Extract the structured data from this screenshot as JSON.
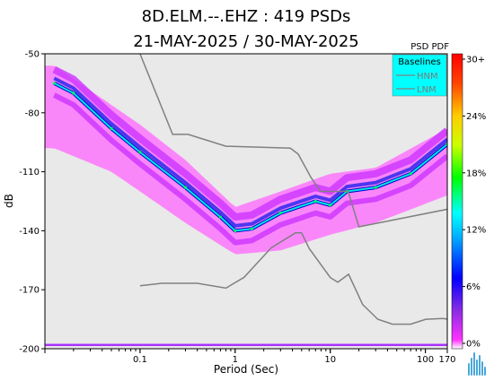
{
  "title": {
    "line1": "8D.ELM.--.EHZ : 419 PSDs",
    "line2": "21-MAY-2025 / 30-MAY-2025"
  },
  "colors": {
    "plot_background": "#e9e9e9",
    "baseline_line": "#808080",
    "legend_background": "#00ffff",
    "mode_line": "#00e5e5"
  },
  "chart_data": {
    "type": "heatmap",
    "title": "8D.ELM.--.EHZ : 419 PSDs",
    "subtitle": "21-MAY-2025 / 30-MAY-2025",
    "xlabel": "Period (Sec)",
    "ylabel": "dB",
    "x_scale": "log",
    "xlim": [
      0.01,
      170
    ],
    "ylim": [
      -200,
      -50
    ],
    "x_ticks": [
      "0.1",
      "1",
      "10",
      "100",
      "170"
    ],
    "y_ticks": [
      "-50",
      "-80",
      "-110",
      "-140",
      "-170",
      "-200"
    ],
    "grid": false,
    "colorbar": {
      "title": "PSD PDF",
      "labels": [
        "30+",
        "24%",
        "18%",
        "12%",
        "6%",
        "0%"
      ],
      "range_percent": [
        0,
        30
      ]
    },
    "legend": {
      "title": "Baselines",
      "entries": [
        "HNM",
        "LNM"
      ],
      "position": "top-right"
    },
    "psd_mode": [
      {
        "period": 0.0125,
        "db": -65
      },
      {
        "period": 0.02,
        "db": -70
      },
      {
        "period": 0.05,
        "db": -88
      },
      {
        "period": 0.1,
        "db": -100
      },
      {
        "period": 0.3,
        "db": -118
      },
      {
        "period": 0.7,
        "db": -133
      },
      {
        "period": 1.0,
        "db": -140
      },
      {
        "period": 1.5,
        "db": -139
      },
      {
        "period": 3.0,
        "db": -131
      },
      {
        "period": 7.0,
        "db": -125
      },
      {
        "period": 10.0,
        "db": -127
      },
      {
        "period": 15.0,
        "db": -120
      },
      {
        "period": 30.0,
        "db": -118
      },
      {
        "period": 70.0,
        "db": -111
      },
      {
        "period": 170.0,
        "db": -96
      }
    ],
    "psd_spread": [
      {
        "period": 0.0125,
        "low": -98,
        "high": -56
      },
      {
        "period": 0.05,
        "low": -110,
        "high": -76
      },
      {
        "period": 0.1,
        "low": -120,
        "high": -86
      },
      {
        "period": 0.3,
        "low": -136,
        "high": -104
      },
      {
        "period": 1.0,
        "low": -152,
        "high": -128
      },
      {
        "period": 3.0,
        "low": -150,
        "high": -120
      },
      {
        "period": 10.0,
        "low": -142,
        "high": -111
      },
      {
        "period": 30.0,
        "low": -136,
        "high": -108
      },
      {
        "period": 170.0,
        "low": -122,
        "high": -88
      }
    ],
    "series": [
      {
        "name": "HNM",
        "points": [
          {
            "period": 0.1,
            "db": -50
          },
          {
            "period": 0.22,
            "db": -91
          },
          {
            "period": 0.32,
            "db": -91
          },
          {
            "period": 0.8,
            "db": -97
          },
          {
            "period": 3.8,
            "db": -98
          },
          {
            "period": 4.6,
            "db": -101
          },
          {
            "period": 6.3,
            "db": -113
          },
          {
            "period": 7.9,
            "db": -120
          },
          {
            "period": 15.4,
            "db": -120
          },
          {
            "period": 20,
            "db": -138
          },
          {
            "period": 354.8,
            "db": -126
          }
        ]
      },
      {
        "name": "LNM",
        "points": [
          {
            "period": 0.1,
            "db": -168
          },
          {
            "period": 0.17,
            "db": -166.7
          },
          {
            "period": 0.4,
            "db": -166.7
          },
          {
            "period": 0.8,
            "db": -169.2
          },
          {
            "period": 1.24,
            "db": -163.7
          },
          {
            "period": 2.4,
            "db": -148.6
          },
          {
            "period": 4.3,
            "db": -141.1
          },
          {
            "period": 5.0,
            "db": -141.1
          },
          {
            "period": 6.0,
            "db": -149
          },
          {
            "period": 10.0,
            "db": -163.8
          },
          {
            "period": 12.0,
            "db": -166.2
          },
          {
            "period": 15.6,
            "db": -162.1
          },
          {
            "period": 21.9,
            "db": -177.5
          },
          {
            "period": 31.6,
            "db": -185
          },
          {
            "period": 45,
            "db": -187.5
          },
          {
            "period": 70,
            "db": -187.5
          },
          {
            "period": 101,
            "db": -185
          },
          {
            "period": 154,
            "db": -184.6
          },
          {
            "period": 328,
            "db": -187.5
          }
        ]
      }
    ]
  }
}
